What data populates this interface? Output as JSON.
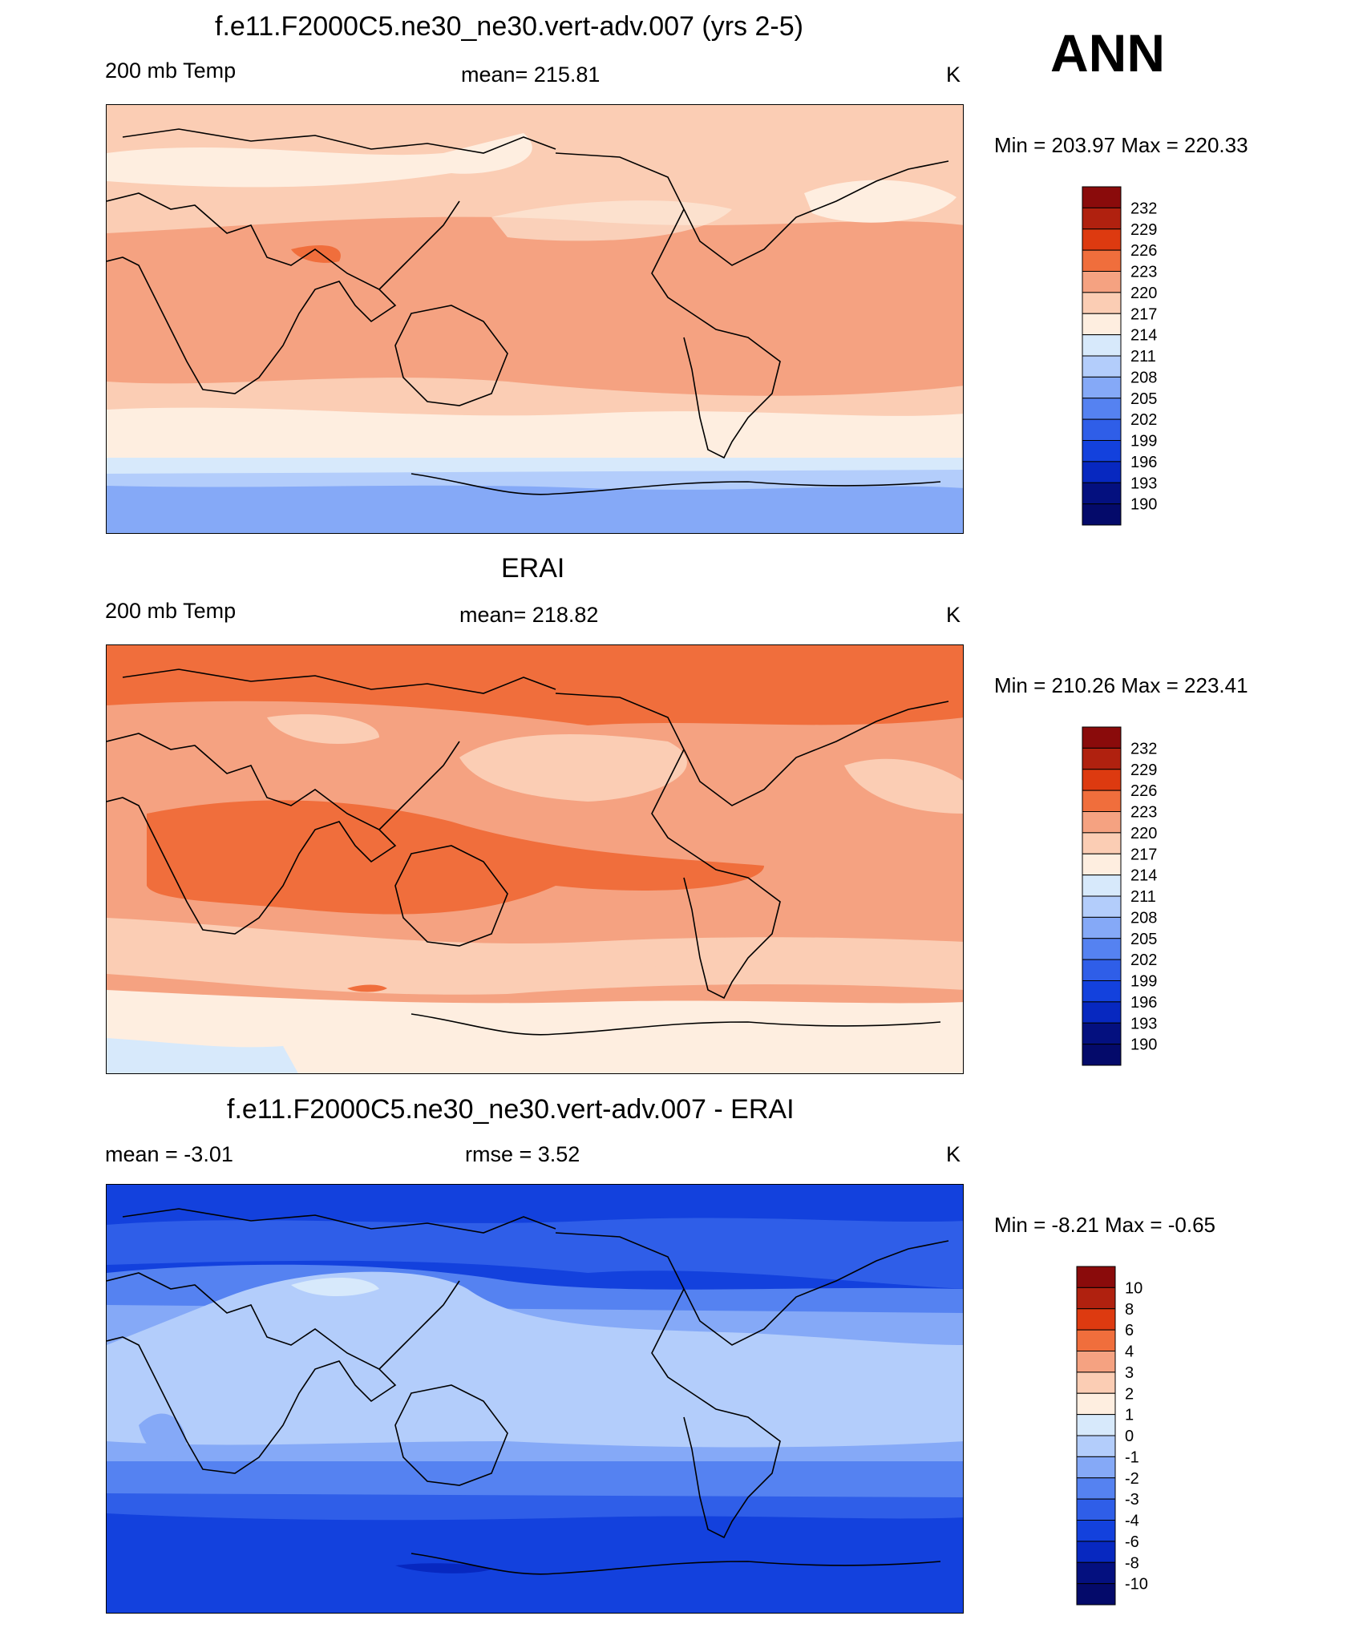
{
  "corner_label": "ANN",
  "panels": [
    {
      "title": "f.e11.F2000C5.ne30_ne30.vert-adv.007 (yrs 2-5)",
      "left": "200 mb Temp",
      "center": "mean= 215.81",
      "units": "K",
      "minmax": "Min = 203.97 Max = 220.33",
      "levels": [
        "232",
        "229",
        "226",
        "223",
        "220",
        "217",
        "214",
        "211",
        "208",
        "205",
        "202",
        "199",
        "196",
        "193",
        "190"
      ]
    },
    {
      "title": "ERAI",
      "left": "200 mb Temp",
      "center": "mean= 218.82",
      "units": "K",
      "minmax": "Min = 210.26 Max = 223.41",
      "levels": [
        "232",
        "229",
        "226",
        "223",
        "220",
        "217",
        "214",
        "211",
        "208",
        "205",
        "202",
        "199",
        "196",
        "193",
        "190"
      ]
    },
    {
      "title": "f.e11.F2000C5.ne30_ne30.vert-adv.007 - ERAI",
      "left": "mean =  -3.01",
      "center": "rmse =   3.52",
      "units": "K",
      "minmax": "Min =  -8.21 Max =  -0.65",
      "levels": [
        "10",
        "8",
        "6",
        "4",
        "3",
        "2",
        "1",
        "0",
        "-1",
        "-2",
        "-3",
        "-4",
        "-6",
        "-8",
        "-10"
      ]
    }
  ],
  "colors": {
    "palette": [
      "#8a0b0b",
      "#b0210f",
      "#dd3a10",
      "#f06e3c",
      "#f5a281",
      "#fbcdb4",
      "#feeee0",
      "#d7e9fb",
      "#b3cdfb",
      "#85a9f7",
      "#5582f1",
      "#2f5ee8",
      "#1341dd",
      "#0728c0",
      "#04107f"
    ],
    "land_outline": "#000000"
  }
}
